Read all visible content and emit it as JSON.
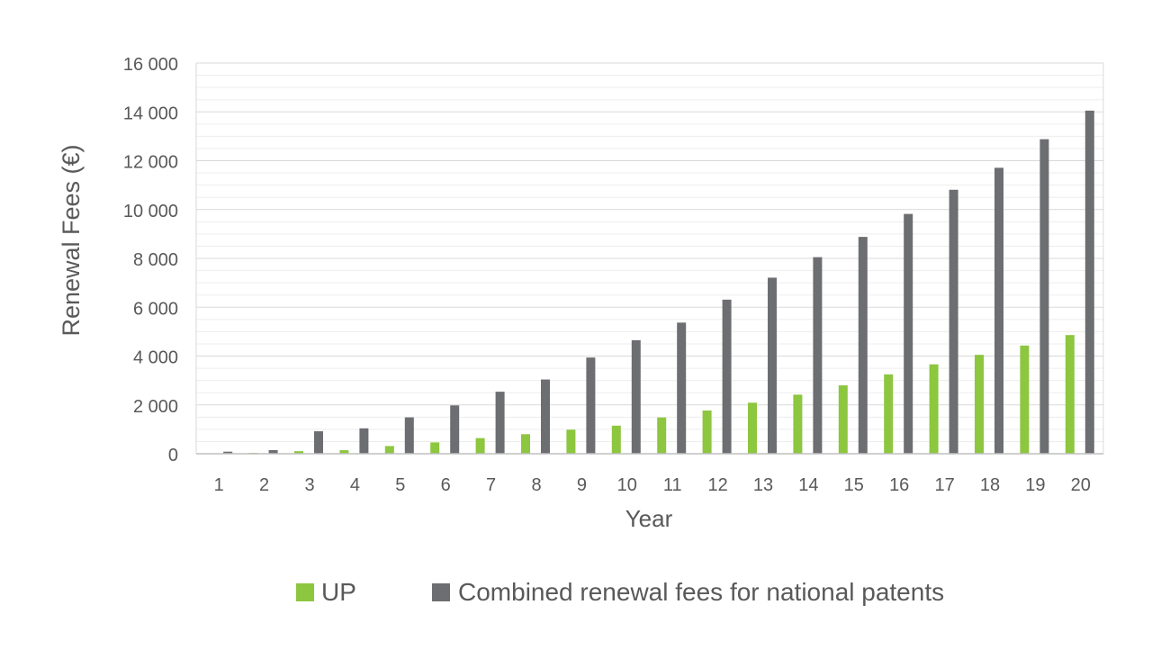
{
  "chart_data": {
    "type": "bar",
    "xlabel": "Year",
    "ylabel": "Renewal Fees (€)",
    "ylim": [
      0,
      16000
    ],
    "yticks": [
      0,
      2000,
      4000,
      6000,
      8000,
      10000,
      12000,
      14000,
      16000
    ],
    "ytick_labels": [
      "0",
      "2 000",
      "4 000",
      "6 000",
      "8 000",
      "10 000",
      "12 000",
      "14 000",
      "16 000"
    ],
    "categories": [
      "1",
      "2",
      "3",
      "4",
      "5",
      "6",
      "7",
      "8",
      "9",
      "10",
      "11",
      "12",
      "13",
      "14",
      "15",
      "16",
      "17",
      "18",
      "19",
      "20"
    ],
    "grid": true,
    "legend_position": "bottom",
    "series": [
      {
        "name": "UP",
        "color": "#8dc63f",
        "values": [
          0,
          35,
          105,
          145,
          315,
          465,
          640,
          800,
          985,
          1150,
          1485,
          1770,
          2090,
          2420,
          2800,
          3250,
          3660,
          4050,
          4430,
          4860
        ]
      },
      {
        "name": "Combined renewal fees for national patents",
        "color": "#6d6e71",
        "values": [
          85,
          150,
          920,
          1040,
          1490,
          1980,
          2540,
          3040,
          3940,
          4650,
          5370,
          6310,
          7210,
          8050,
          8880,
          9820,
          10810,
          11710,
          12880,
          14050
        ]
      }
    ]
  }
}
